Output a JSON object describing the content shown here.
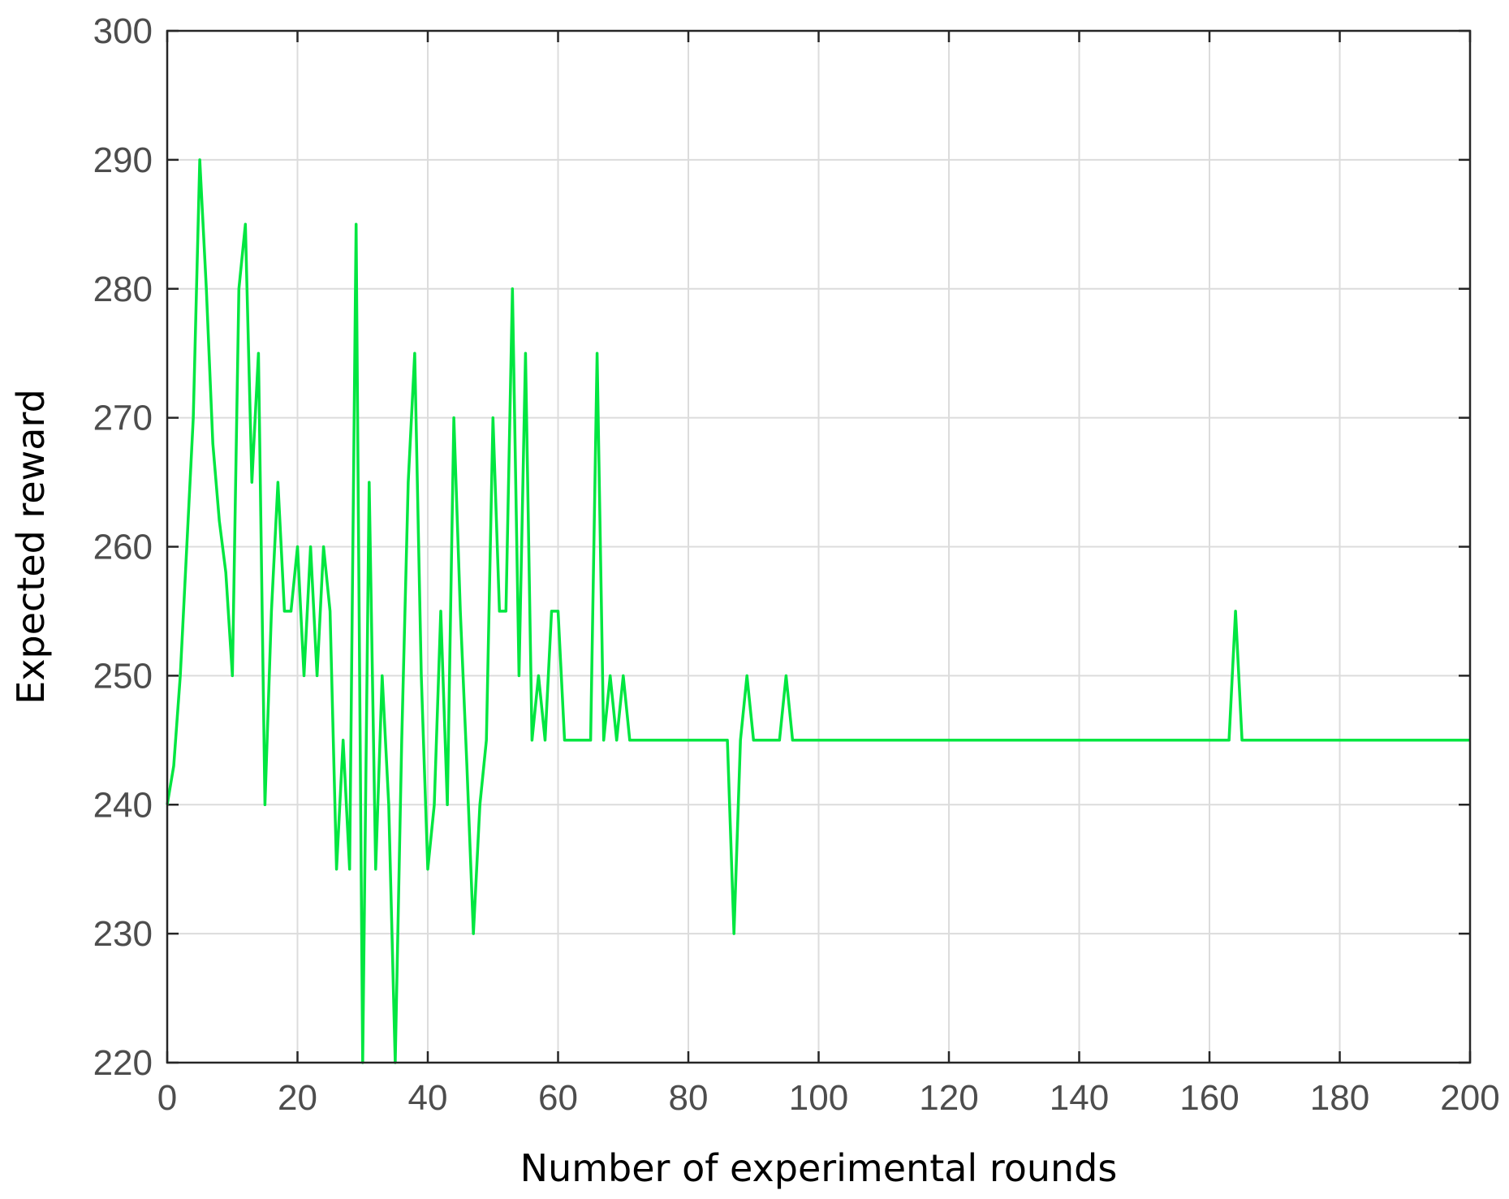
{
  "chart_data": {
    "type": "line",
    "title": "",
    "xlabel": "Number of experimental rounds",
    "ylabel": "Expected reward",
    "xlim": [
      0,
      200
    ],
    "ylim": [
      220,
      300
    ],
    "xticks": [
      0,
      20,
      40,
      60,
      80,
      100,
      120,
      140,
      160,
      180,
      200
    ],
    "yticks": [
      220,
      230,
      240,
      250,
      260,
      270,
      280,
      290,
      300
    ],
    "grid": true,
    "line_color": "#00e640",
    "series": [
      {
        "x": [
          0,
          1,
          2,
          3,
          4,
          5,
          6,
          7,
          8,
          9,
          10,
          11,
          12,
          13,
          14,
          15,
          16,
          17,
          18,
          19,
          20,
          21,
          22,
          23,
          24,
          25,
          26,
          27,
          28,
          29,
          30,
          31,
          32,
          33,
          34,
          35,
          36,
          37,
          38,
          39,
          40,
          41,
          42,
          43,
          44,
          45,
          46,
          47,
          48,
          49,
          50,
          51,
          52,
          53,
          54,
          55,
          56,
          57,
          58,
          59,
          60,
          61,
          62,
          63,
          64,
          65,
          66,
          67,
          68,
          69,
          70,
          71,
          72,
          73,
          74,
          75,
          76,
          77,
          78,
          79,
          80,
          81,
          82,
          83,
          84,
          85,
          86,
          87,
          88,
          89,
          90,
          91,
          92,
          93,
          94,
          95,
          96,
          97,
          98,
          99,
          100,
          163,
          164,
          165,
          166,
          200
        ],
        "y": [
          240,
          243,
          250,
          260,
          270,
          290,
          280,
          268,
          262,
          258,
          250,
          280,
          285,
          265,
          275,
          240,
          255,
          265,
          255,
          255,
          260,
          250,
          260,
          250,
          260,
          255,
          235,
          245,
          235,
          285,
          220,
          265,
          235,
          250,
          240,
          220,
          245,
          265,
          275,
          250,
          235,
          240,
          255,
          240,
          270,
          255,
          243,
          230,
          240,
          245,
          270,
          255,
          255,
          280,
          250,
          275,
          245,
          250,
          245,
          255,
          255,
          245,
          245,
          245,
          245,
          245,
          275,
          245,
          250,
          245,
          250,
          245,
          245,
          245,
          245,
          245,
          245,
          245,
          245,
          245,
          245,
          245,
          245,
          245,
          245,
          245,
          245,
          230,
          245,
          250,
          245,
          245,
          245,
          245,
          245,
          250,
          245,
          245,
          245,
          245,
          245,
          245,
          255,
          245,
          245,
          245
        ]
      }
    ]
  }
}
